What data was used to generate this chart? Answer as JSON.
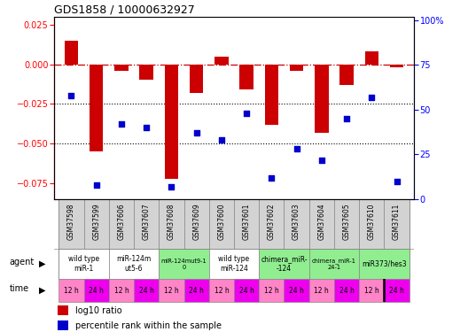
{
  "title": "GDS1858 / 10000632927",
  "samples": [
    "GSM37598",
    "GSM37599",
    "GSM37606",
    "GSM37607",
    "GSM37608",
    "GSM37609",
    "GSM37600",
    "GSM37601",
    "GSM37602",
    "GSM37603",
    "GSM37604",
    "GSM37605",
    "GSM37610",
    "GSM37611"
  ],
  "log10_ratio": [
    0.015,
    -0.055,
    -0.004,
    -0.01,
    -0.072,
    -0.018,
    0.005,
    -0.016,
    -0.038,
    -0.004,
    -0.043,
    -0.013,
    0.008,
    -0.002
  ],
  "percentile_rank": [
    58,
    8,
    42,
    40,
    7,
    37,
    33,
    48,
    12,
    28,
    22,
    45,
    57,
    10
  ],
  "ylim_left": [
    -0.085,
    0.03
  ],
  "ylim_right": [
    0,
    102
  ],
  "yticks_left": [
    0.025,
    0.0,
    -0.025,
    -0.05,
    -0.075
  ],
  "yticks_right": [
    100,
    75,
    50,
    25,
    0
  ],
  "ytick_right_labels": [
    "100%",
    "75",
    "50",
    "25",
    "0"
  ],
  "dotted_lines": [
    -0.025,
    -0.05
  ],
  "agent_groups": [
    {
      "label": "wild type\nmiR-1",
      "cols": [
        0,
        1
      ],
      "color": "#ffffff"
    },
    {
      "label": "miR-124m\nut5-6",
      "cols": [
        2,
        3
      ],
      "color": "#ffffff"
    },
    {
      "label": "miR-124mut9-1\n0",
      "cols": [
        4,
        5
      ],
      "color": "#90ee90"
    },
    {
      "label": "wild type\nmiR-124",
      "cols": [
        6,
        7
      ],
      "color": "#ffffff"
    },
    {
      "label": "chimera_miR-\n-124",
      "cols": [
        8,
        9
      ],
      "color": "#90ee90"
    },
    {
      "label": "chimera_miR-1\n24-1",
      "cols": [
        10,
        11
      ],
      "color": "#90ee90"
    },
    {
      "label": "miR373/hes3",
      "cols": [
        12,
        13
      ],
      "color": "#90ee90"
    }
  ],
  "time_labels": [
    "12 h",
    "24 h",
    "12 h",
    "24 h",
    "12 h",
    "24 h",
    "12 h",
    "24 h",
    "12 h",
    "24 h",
    "12 h",
    "24 h",
    "12 h",
    "24 h"
  ],
  "color_12h": "#ff85c8",
  "color_24h": "#ee00ee",
  "bar_color": "#cc0000",
  "dot_color": "#0000cc",
  "sample_bg": "#d3d3d3",
  "background_color": "#ffffff",
  "bar_width": 0.55
}
